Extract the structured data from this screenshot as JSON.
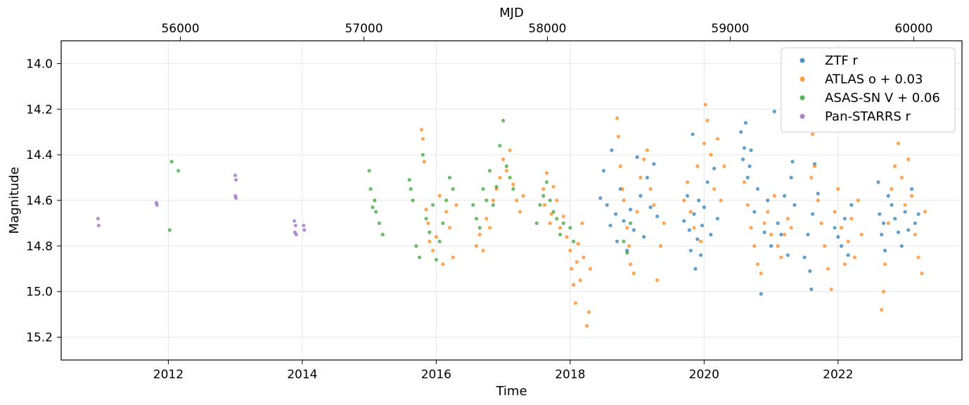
{
  "chart_data": {
    "type": "scatter",
    "xlabel": "Time",
    "ylabel": "Magnitude",
    "top_xlabel": "MJD",
    "xlim": [
      2010.4,
      2023.85
    ],
    "ylim": [
      15.3,
      13.9
    ],
    "y_inverted": true,
    "grid": true,
    "legend_position": "top-right",
    "x_ticks": [
      2012,
      2014,
      2016,
      2018,
      2020,
      2022
    ],
    "x_tick_labels": [
      "2012",
      "2014",
      "2016",
      "2018",
      "2020",
      "2022"
    ],
    "y_ticks": [
      14.0,
      14.2,
      14.4,
      14.6,
      14.8,
      15.0,
      15.2
    ],
    "y_tick_labels": [
      "14.0",
      "14.2",
      "14.4",
      "14.6",
      "14.8",
      "15.0",
      "15.2"
    ],
    "top_ticks_time": [
      2012.18,
      2014.92,
      2017.66,
      2020.39,
      2023.13,
      2025.87
    ],
    "top_tick_labels": [
      "56000",
      "57000",
      "58000",
      "59000",
      "60000"
    ],
    "series": [
      {
        "name": "ZTF r",
        "color": "#1f77b4",
        "points": [
          [
            2018.45,
            14.59
          ],
          [
            2018.5,
            14.47
          ],
          [
            2018.55,
            14.62
          ],
          [
            2018.6,
            14.71
          ],
          [
            2018.62,
            14.38
          ],
          [
            2018.68,
            14.66
          ],
          [
            2018.7,
            14.78
          ],
          [
            2018.75,
            14.55
          ],
          [
            2018.8,
            14.69
          ],
          [
            2018.85,
            14.82
          ],
          [
            2018.9,
            14.64
          ],
          [
            2018.95,
            14.73
          ],
          [
            2019.0,
            14.41
          ],
          [
            2019.05,
            14.58
          ],
          [
            2019.1,
            14.76
          ],
          [
            2019.15,
            14.5
          ],
          [
            2019.2,
            14.63
          ],
          [
            2019.25,
            14.44
          ],
          [
            2019.3,
            14.67
          ],
          [
            2019.7,
            14.69
          ],
          [
            2019.75,
            14.58
          ],
          [
            2019.78,
            14.73
          ],
          [
            2019.8,
            14.82
          ],
          [
            2019.83,
            14.31
          ],
          [
            2019.85,
            14.66
          ],
          [
            2019.87,
            14.9
          ],
          [
            2019.9,
            14.77
          ],
          [
            2019.92,
            14.6
          ],
          [
            2019.95,
            14.84
          ],
          [
            2019.97,
            14.71
          ],
          [
            2020.0,
            14.63
          ],
          [
            2020.05,
            14.52
          ],
          [
            2020.1,
            14.75
          ],
          [
            2020.15,
            14.46
          ],
          [
            2020.2,
            14.68
          ],
          [
            2020.55,
            14.3
          ],
          [
            2020.58,
            14.42
          ],
          [
            2020.6,
            14.37
          ],
          [
            2020.62,
            14.26
          ],
          [
            2020.65,
            14.5
          ],
          [
            2020.68,
            14.45
          ],
          [
            2020.7,
            14.38
          ],
          [
            2020.75,
            14.65
          ],
          [
            2020.8,
            14.55
          ],
          [
            2020.85,
            15.01
          ],
          [
            2020.9,
            14.74
          ],
          [
            2020.95,
            14.6
          ],
          [
            2021.0,
            14.8
          ],
          [
            2021.05,
            14.21
          ],
          [
            2021.1,
            14.7
          ],
          [
            2021.15,
            14.75
          ],
          [
            2021.2,
            14.58
          ],
          [
            2021.25,
            14.84
          ],
          [
            2021.3,
            14.5
          ],
          [
            2021.32,
            14.43
          ],
          [
            2021.35,
            14.62
          ],
          [
            2021.5,
            14.85
          ],
          [
            2021.55,
            14.75
          ],
          [
            2021.58,
            14.91
          ],
          [
            2021.6,
            14.99
          ],
          [
            2021.62,
            14.66
          ],
          [
            2021.65,
            14.44
          ],
          [
            2021.7,
            14.57
          ],
          [
            2021.95,
            14.72
          ],
          [
            2022.0,
            14.76
          ],
          [
            2022.05,
            14.8
          ],
          [
            2022.1,
            14.68
          ],
          [
            2022.15,
            14.84
          ],
          [
            2022.2,
            14.62
          ],
          [
            2022.6,
            14.52
          ],
          [
            2022.62,
            14.66
          ],
          [
            2022.65,
            14.75
          ],
          [
            2022.68,
            14.7
          ],
          [
            2022.7,
            14.82
          ],
          [
            2022.75,
            14.58
          ],
          [
            2022.8,
            14.62
          ],
          [
            2022.85,
            14.68
          ],
          [
            2022.9,
            14.74
          ],
          [
            2022.95,
            14.8
          ],
          [
            2023.0,
            14.65
          ],
          [
            2023.05,
            14.73
          ],
          [
            2023.1,
            14.55
          ],
          [
            2023.15,
            14.7
          ],
          [
            2023.2,
            14.66
          ]
        ]
      },
      {
        "name": "ATLAS o + 0.03",
        "color": "#ff7f0e",
        "points": [
          [
            2015.78,
            14.29
          ],
          [
            2015.8,
            14.33
          ],
          [
            2015.82,
            14.43
          ],
          [
            2015.85,
            14.64
          ],
          [
            2015.88,
            14.7
          ],
          [
            2015.9,
            14.78
          ],
          [
            2015.95,
            14.82
          ],
          [
            2016.0,
            14.76
          ],
          [
            2016.05,
            14.58
          ],
          [
            2016.1,
            14.88
          ],
          [
            2016.15,
            14.65
          ],
          [
            2016.2,
            14.72
          ],
          [
            2016.25,
            14.85
          ],
          [
            2016.3,
            14.62
          ],
          [
            2016.6,
            14.8
          ],
          [
            2016.65,
            14.75
          ],
          [
            2016.7,
            14.82
          ],
          [
            2016.75,
            14.68
          ],
          [
            2016.8,
            14.72
          ],
          [
            2016.85,
            14.6
          ],
          [
            2016.9,
            14.55
          ],
          [
            2016.95,
            14.5
          ],
          [
            2017.0,
            14.42
          ],
          [
            2017.05,
            14.47
          ],
          [
            2017.1,
            14.38
          ],
          [
            2017.15,
            14.53
          ],
          [
            2017.2,
            14.6
          ],
          [
            2017.25,
            14.65
          ],
          [
            2017.3,
            14.58
          ],
          [
            2017.6,
            14.55
          ],
          [
            2017.62,
            14.62
          ],
          [
            2017.65,
            14.48
          ],
          [
            2017.7,
            14.7
          ],
          [
            2017.72,
            14.66
          ],
          [
            2017.75,
            14.54
          ],
          [
            2017.8,
            14.6
          ],
          [
            2017.85,
            14.72
          ],
          [
            2017.9,
            14.67
          ],
          [
            2017.95,
            14.76
          ],
          [
            2018.0,
            14.82
          ],
          [
            2018.02,
            14.9
          ],
          [
            2018.05,
            14.97
          ],
          [
            2018.08,
            15.05
          ],
          [
            2018.1,
            14.87
          ],
          [
            2018.12,
            14.79
          ],
          [
            2018.15,
            14.95
          ],
          [
            2018.18,
            14.7
          ],
          [
            2018.2,
            14.85
          ],
          [
            2018.25,
            15.15
          ],
          [
            2018.28,
            15.09
          ],
          [
            2018.3,
            14.9
          ],
          [
            2018.7,
            14.24
          ],
          [
            2018.72,
            14.32
          ],
          [
            2018.75,
            14.45
          ],
          [
            2018.78,
            14.55
          ],
          [
            2018.8,
            14.6
          ],
          [
            2018.85,
            14.72
          ],
          [
            2018.88,
            14.8
          ],
          [
            2018.9,
            14.88
          ],
          [
            2018.95,
            14.92
          ],
          [
            2019.0,
            14.65
          ],
          [
            2019.05,
            14.5
          ],
          [
            2019.1,
            14.42
          ],
          [
            2019.15,
            14.38
          ],
          [
            2019.2,
            14.55
          ],
          [
            2019.25,
            14.62
          ],
          [
            2019.3,
            14.95
          ],
          [
            2019.35,
            14.8
          ],
          [
            2019.4,
            14.7
          ],
          [
            2019.7,
            14.6
          ],
          [
            2019.75,
            14.52
          ],
          [
            2019.8,
            14.65
          ],
          [
            2019.85,
            14.72
          ],
          [
            2019.9,
            14.45
          ],
          [
            2019.95,
            14.78
          ],
          [
            2020.0,
            14.35
          ],
          [
            2020.02,
            14.18
          ],
          [
            2020.05,
            14.25
          ],
          [
            2020.1,
            14.4
          ],
          [
            2020.15,
            14.55
          ],
          [
            2020.2,
            14.33
          ],
          [
            2020.25,
            14.6
          ],
          [
            2020.3,
            14.45
          ],
          [
            2020.6,
            14.52
          ],
          [
            2020.65,
            14.62
          ],
          [
            2020.7,
            14.72
          ],
          [
            2020.75,
            14.8
          ],
          [
            2020.8,
            14.88
          ],
          [
            2020.85,
            14.92
          ],
          [
            2020.9,
            14.7
          ],
          [
            2020.95,
            14.65
          ],
          [
            2021.0,
            14.75
          ],
          [
            2021.05,
            14.58
          ],
          [
            2021.1,
            14.8
          ],
          [
            2021.15,
            14.85
          ],
          [
            2021.2,
            14.75
          ],
          [
            2021.25,
            14.68
          ],
          [
            2021.3,
            14.72
          ],
          [
            2021.6,
            14.5
          ],
          [
            2021.62,
            14.31
          ],
          [
            2021.65,
            14.45
          ],
          [
            2021.7,
            14.6
          ],
          [
            2021.75,
            14.7
          ],
          [
            2021.8,
            14.8
          ],
          [
            2021.85,
            14.9
          ],
          [
            2021.9,
            14.99
          ],
          [
            2021.95,
            14.65
          ],
          [
            2022.0,
            14.55
          ],
          [
            2022.05,
            14.72
          ],
          [
            2022.1,
            14.88
          ],
          [
            2022.15,
            14.78
          ],
          [
            2022.2,
            14.68
          ],
          [
            2022.25,
            14.85
          ],
          [
            2022.3,
            14.6
          ],
          [
            2022.35,
            14.75
          ],
          [
            2022.65,
            15.08
          ],
          [
            2022.68,
            15.0
          ],
          [
            2022.7,
            14.88
          ],
          [
            2022.75,
            14.7
          ],
          [
            2022.8,
            14.55
          ],
          [
            2022.85,
            14.45
          ],
          [
            2022.9,
            14.35
          ],
          [
            2022.95,
            14.5
          ],
          [
            2023.0,
            14.62
          ],
          [
            2023.05,
            14.42
          ],
          [
            2023.1,
            14.58
          ],
          [
            2023.15,
            14.75
          ],
          [
            2023.2,
            14.85
          ],
          [
            2023.25,
            14.92
          ],
          [
            2023.3,
            14.65
          ]
        ]
      },
      {
        "name": "ASAS-SN V + 0.06",
        "color": "#2ca02c",
        "points": [
          [
            2012.05,
            14.43
          ],
          [
            2012.15,
            14.47
          ],
          [
            2012.02,
            14.73
          ],
          [
            2015.0,
            14.47
          ],
          [
            2015.02,
            14.55
          ],
          [
            2015.05,
            14.63
          ],
          [
            2015.08,
            14.6
          ],
          [
            2015.1,
            14.65
          ],
          [
            2015.15,
            14.7
          ],
          [
            2015.2,
            14.75
          ],
          [
            2015.6,
            14.51
          ],
          [
            2015.62,
            14.55
          ],
          [
            2015.65,
            14.6
          ],
          [
            2015.7,
            14.8
          ],
          [
            2015.75,
            14.85
          ],
          [
            2015.8,
            14.4
          ],
          [
            2015.85,
            14.68
          ],
          [
            2015.9,
            14.74
          ],
          [
            2015.95,
            14.62
          ],
          [
            2016.0,
            14.86
          ],
          [
            2016.05,
            14.78
          ],
          [
            2016.1,
            14.7
          ],
          [
            2016.15,
            14.6
          ],
          [
            2016.2,
            14.5
          ],
          [
            2016.25,
            14.55
          ],
          [
            2016.55,
            14.62
          ],
          [
            2016.6,
            14.68
          ],
          [
            2016.65,
            14.72
          ],
          [
            2016.7,
            14.55
          ],
          [
            2016.75,
            14.6
          ],
          [
            2016.8,
            14.47
          ],
          [
            2016.85,
            14.62
          ],
          [
            2016.9,
            14.54
          ],
          [
            2016.95,
            14.36
          ],
          [
            2017.0,
            14.25
          ],
          [
            2017.05,
            14.45
          ],
          [
            2017.1,
            14.5
          ],
          [
            2017.15,
            14.55
          ],
          [
            2017.5,
            14.7
          ],
          [
            2017.55,
            14.62
          ],
          [
            2017.6,
            14.58
          ],
          [
            2017.65,
            14.52
          ],
          [
            2017.7,
            14.6
          ],
          [
            2017.75,
            14.65
          ],
          [
            2017.8,
            14.68
          ],
          [
            2017.85,
            14.75
          ],
          [
            2017.9,
            14.7
          ],
          [
            2018.0,
            14.72
          ],
          [
            2018.05,
            14.78
          ],
          [
            2018.8,
            14.78
          ],
          [
            2018.85,
            14.83
          ],
          [
            2018.9,
            14.7
          ]
        ]
      },
      {
        "name": "Pan-STARRS r",
        "color": "#9467bd",
        "points": [
          [
            2010.95,
            14.68
          ],
          [
            2010.96,
            14.71
          ],
          [
            2011.82,
            14.61
          ],
          [
            2011.83,
            14.62
          ],
          [
            2013.0,
            14.49
          ],
          [
            2013.01,
            14.51
          ],
          [
            2013.0,
            14.58
          ],
          [
            2013.01,
            14.59
          ],
          [
            2013.88,
            14.69
          ],
          [
            2013.9,
            14.71
          ],
          [
            2013.89,
            14.74
          ],
          [
            2013.91,
            14.75
          ],
          [
            2014.02,
            14.71
          ],
          [
            2014.03,
            14.73
          ]
        ]
      }
    ]
  }
}
